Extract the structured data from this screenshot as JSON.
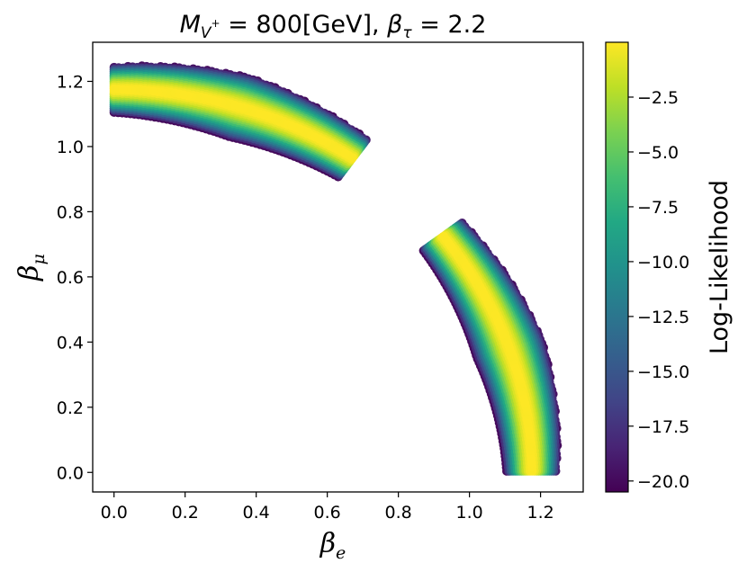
{
  "chart_data": {
    "type": "scatter",
    "title": {
      "m_symbol": "M",
      "m_sub": "V",
      "m_sup": "+",
      "m_value": " = 800[GeV], ",
      "b_symbol": "β",
      "b_sub": "τ",
      "b_value": " = 2.2"
    },
    "xlabel": {
      "symbol": "β",
      "sub": "e"
    },
    "ylabel": {
      "symbol": "β",
      "sub": "μ"
    },
    "xlim": [
      -0.06,
      1.32
    ],
    "ylim": [
      -0.06,
      1.32
    ],
    "xticks": [
      0.0,
      0.2,
      0.4,
      0.6,
      0.8,
      1.0,
      1.2
    ],
    "xtick_labels": [
      "0.0",
      "0.2",
      "0.4",
      "0.6",
      "0.8",
      "1.0",
      "1.2"
    ],
    "yticks": [
      0.0,
      0.2,
      0.4,
      0.6,
      0.8,
      1.0,
      1.2
    ],
    "ytick_labels": [
      "0.0",
      "0.2",
      "0.4",
      "0.6",
      "0.8",
      "1.0",
      "1.2"
    ],
    "grid": false,
    "colormap": "viridis",
    "colorbar": {
      "label": "Log-Likelihood",
      "range": [
        -20.5,
        0.0
      ],
      "ticks": [
        -2.5,
        -5.0,
        -7.5,
        -10.0,
        -12.5,
        -15.0,
        -17.5,
        -20.0
      ],
      "tick_labels": [
        "−2.5",
        "−5.0",
        "−7.5",
        "−10.0",
        "−12.5",
        "−15.0",
        "−17.5",
        "−20.0"
      ]
    },
    "series": [
      {
        "description_of_region": "upper-left arc",
        "theta_range_deg": [
          0,
          35
        ],
        "center_radius": 1.175,
        "center_value": 0.0,
        "edge_value": -20.0
      },
      {
        "description_of_region": "lower-right arc",
        "theta_range_deg": [
          52,
          90
        ],
        "center_radius": 1.175,
        "center_value": 0.0,
        "edge_value": -20.0
      }
    ]
  }
}
